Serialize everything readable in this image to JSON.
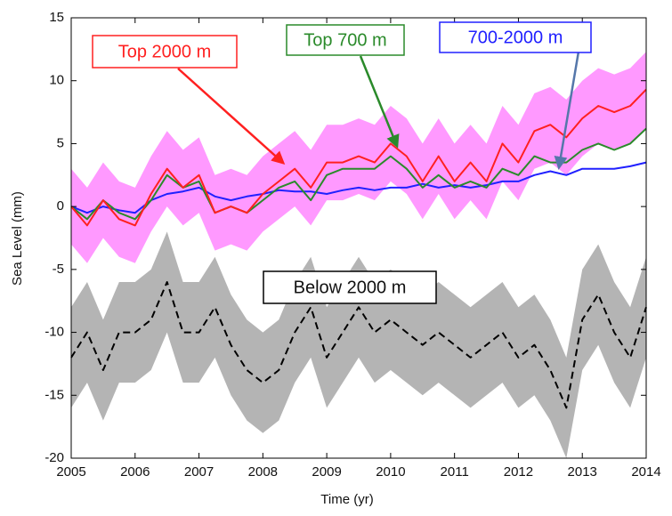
{
  "chart_data": {
    "type": "line",
    "xlabel": "Time (yr)",
    "ylabel": "Sea Level (mm)",
    "x": [
      2005,
      2005.25,
      2005.5,
      2005.75,
      2006,
      2006.25,
      2006.5,
      2006.75,
      2007,
      2007.25,
      2007.5,
      2007.75,
      2008,
      2008.25,
      2008.5,
      2008.75,
      2009,
      2009.25,
      2009.5,
      2009.75,
      2010,
      2010.25,
      2010.5,
      2010.75,
      2011,
      2011.25,
      2011.5,
      2011.75,
      2012,
      2012.25,
      2012.5,
      2012.75,
      2013,
      2013.25,
      2013.5,
      2013.75,
      2014
    ],
    "series": [
      {
        "name": "Top 2000 m",
        "color": "#ff2020",
        "band_color": "#ff99ff",
        "band": 3,
        "values": [
          0,
          -1.5,
          0.5,
          -1,
          -1.5,
          1,
          3,
          1.5,
          2.5,
          -0.5,
          0,
          -0.5,
          1,
          2,
          3,
          1.5,
          3.5,
          3.5,
          4,
          3.5,
          5,
          4,
          2,
          4,
          2,
          3.5,
          2,
          5,
          3.5,
          6,
          6.5,
          5.5,
          7,
          8,
          7.5,
          8,
          9.3
        ]
      },
      {
        "name": "Top 700 m",
        "color": "#2a8a2a",
        "values": [
          0,
          -1,
          0.5,
          -0.5,
          -1,
          0.5,
          2.5,
          1.5,
          2,
          -0.5,
          0,
          -0.5,
          0.5,
          1.5,
          2,
          0.5,
          2.5,
          3,
          3,
          3,
          4,
          3,
          1.5,
          2.5,
          1.5,
          2,
          1.5,
          3,
          2.5,
          4,
          3.5,
          3.5,
          4.5,
          5,
          4.5,
          5,
          6.2
        ]
      },
      {
        "name": "700-2000 m",
        "color": "#2020ff",
        "values": [
          0,
          -0.5,
          0,
          -0.3,
          -0.5,
          0.5,
          1,
          1.2,
          1.5,
          0.8,
          0.5,
          0.8,
          1,
          1.3,
          1.2,
          1.2,
          1,
          1.3,
          1.5,
          1.3,
          1.5,
          1.5,
          1.8,
          1.5,
          1.7,
          1.5,
          1.7,
          2,
          2,
          2.5,
          2.8,
          2.5,
          3,
          3,
          3,
          3.2,
          3.5
        ]
      },
      {
        "name": "Below 2000 m",
        "color": "#000000",
        "band_color": "#b4b4b4",
        "band": 4,
        "dashed": true,
        "values": [
          -12,
          -10,
          -13,
          -10,
          -10,
          -9,
          -6,
          -10,
          -10,
          -8,
          -11,
          -13,
          -14,
          -13,
          -10,
          -8,
          -12,
          -10,
          -8,
          -10,
          -9,
          -10,
          -11,
          -10,
          -11,
          -12,
          -11,
          -10,
          -12,
          -11,
          -13,
          -16,
          -9,
          -7,
          -10,
          -12,
          -8
        ]
      }
    ],
    "xlim": [
      2005,
      2014
    ],
    "xticks": [
      2005,
      2006,
      2007,
      2008,
      2009,
      2010,
      2011,
      2012,
      2013,
      2014
    ],
    "ylim": [
      -20,
      15
    ],
    "yticks": [
      -20,
      -15,
      -10,
      -5,
      0,
      5,
      10,
      15
    ]
  }
}
